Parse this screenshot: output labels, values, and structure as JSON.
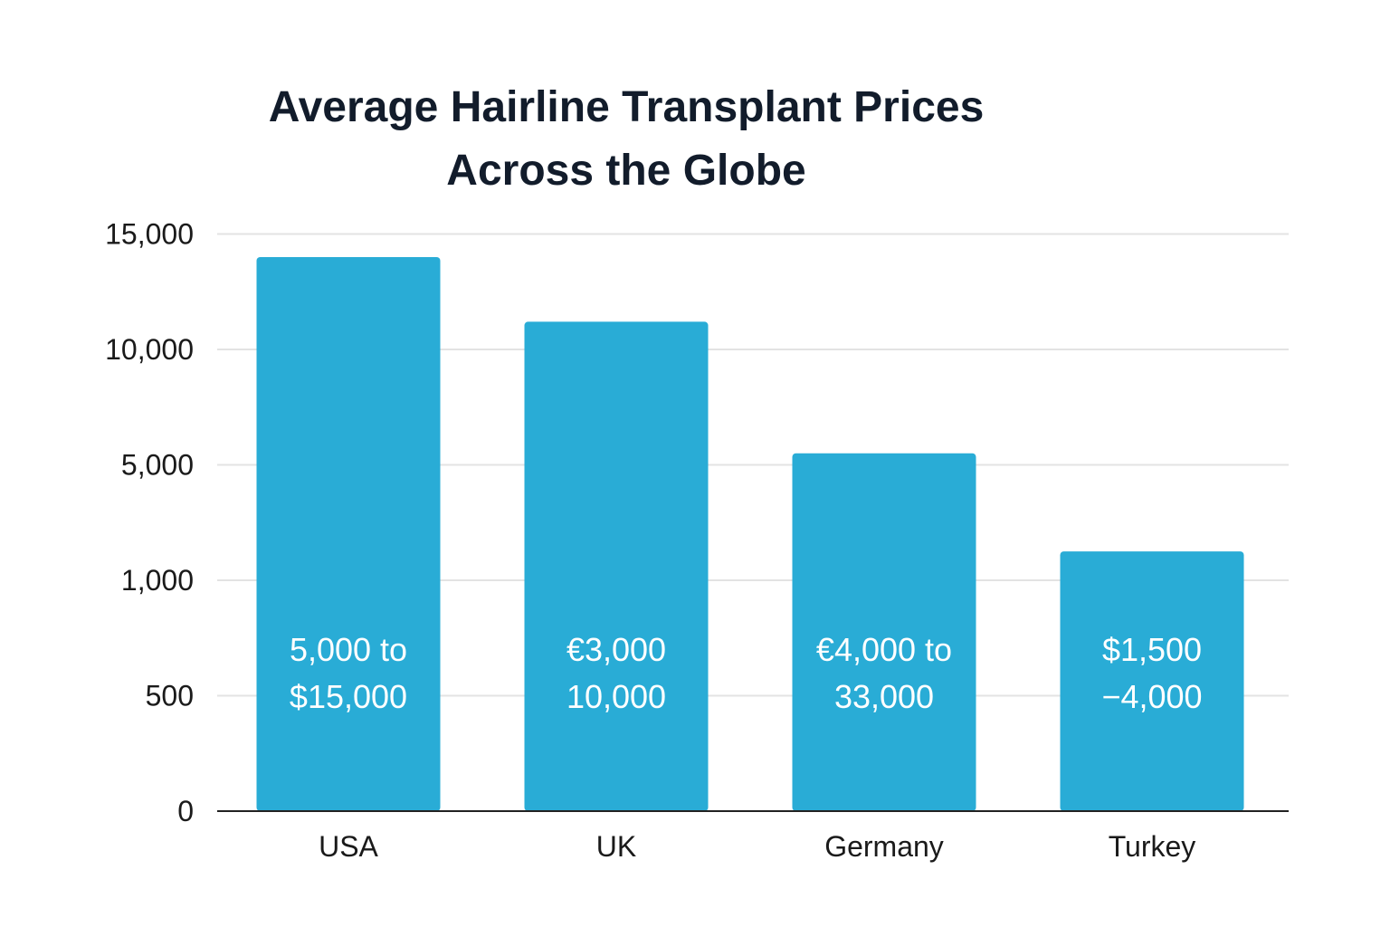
{
  "chart_data": {
    "type": "bar",
    "title_lines": [
      "Average Hairline Transplant Prices",
      "Across the Globe"
    ],
    "xlabel": "",
    "ylabel": "",
    "y_ticks": [
      "15,000",
      "10,000",
      "5,000",
      "1,000",
      "500",
      "0"
    ],
    "categories": [
      "USA",
      "UK",
      "Germany",
      "Turkey"
    ],
    "values": [
      14000,
      11200,
      5500,
      2000
    ],
    "bar_labels": [
      [
        "5,000 to",
        "$15,000"
      ],
      [
        "€3,000",
        "10,000"
      ],
      [
        "€4,000 to",
        "33,000"
      ],
      [
        "$1,500",
        "−4,000"
      ]
    ],
    "ylim": [
      0,
      15000
    ],
    "grid": true,
    "legend": "none",
    "colors": {
      "bar": "#29acd6",
      "grid": "#e3e3e3",
      "axis": "#222222",
      "title": "#121c2b"
    }
  }
}
